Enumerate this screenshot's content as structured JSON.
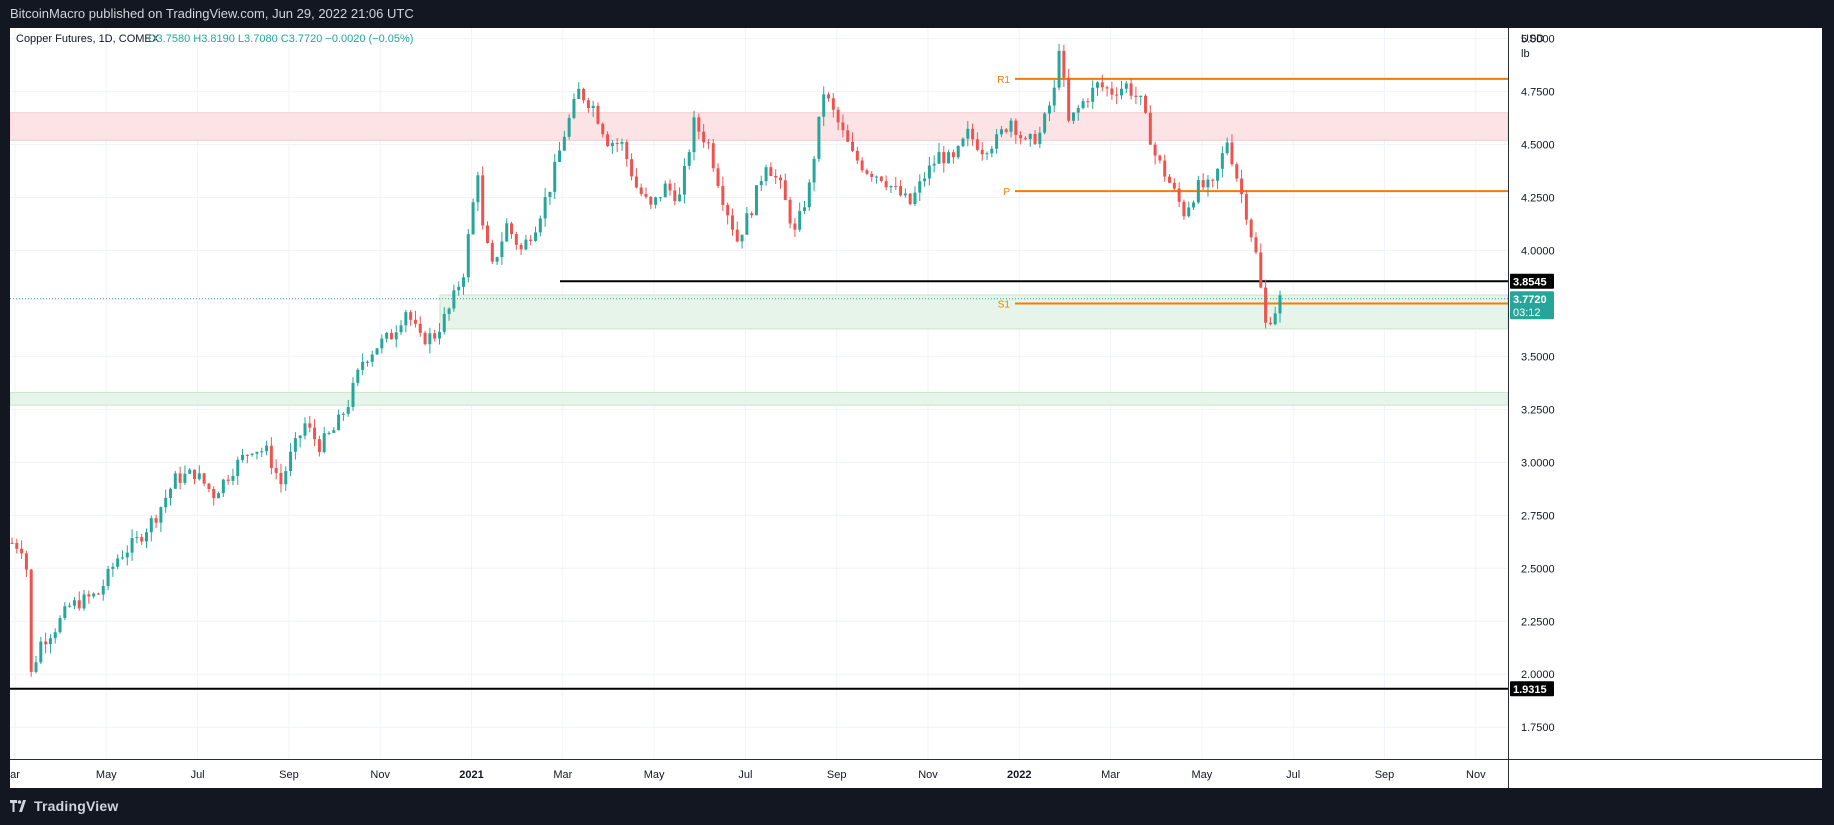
{
  "header": {
    "published": "BitcoinMacro published on TradingView.com, Jun 29, 2022 21:06 UTC"
  },
  "footer": {
    "brand": "TradingView"
  },
  "colors": {
    "up": "#26a69a",
    "down": "#ef5350",
    "level": "#f57c00",
    "line": "#000000"
  },
  "chart_data": {
    "type": "candlestick",
    "instrument": "Copper Futures",
    "timeframe": "1D",
    "exchange": "COMEX",
    "ohlc": {
      "o": "O3.7580",
      "h": "H3.8190",
      "l": "L3.7080",
      "c": "C3.7720",
      "chg": "−0.0020 (−0.05%)"
    },
    "currency_label": "USD",
    "unit_label": "lb",
    "y_range": [
      1.6,
      5.05
    ],
    "y_ticks": [
      "5.0000",
      "4.7500",
      "4.5000",
      "4.2500",
      "4.0000",
      "3.5000",
      "3.2500",
      "3.0000",
      "2.7500",
      "2.5000",
      "2.2500",
      "2.0000",
      "1.7500"
    ],
    "x_labels": [
      "ar",
      "May",
      "Jul",
      "Sep",
      "Nov",
      "2021",
      "Mar",
      "May",
      "Jul",
      "Sep",
      "Nov",
      "2022",
      "Mar",
      "May",
      "Jul",
      "Sep",
      "Nov"
    ],
    "price_markers": [
      {
        "label": "3.8545",
        "value": 3.8545
      },
      {
        "label": "3.7720",
        "value": 3.772,
        "sub": "03:12"
      },
      {
        "label": "1.9315",
        "value": 1.9315
      }
    ],
    "pivot_levels": [
      {
        "label": "R1",
        "value": 4.81
      },
      {
        "label": "P",
        "value": 4.28
      },
      {
        "label": "S1",
        "value": 3.75
      }
    ],
    "zones": [
      {
        "from": 4.52,
        "to": 4.65,
        "color": "#fce4e6"
      },
      {
        "from": 3.63,
        "to": 3.79,
        "color": "#e6f4ea"
      },
      {
        "from": 3.27,
        "to": 3.33,
        "color": "#e6f4ea"
      }
    ],
    "horizontal_lines": [
      {
        "value": 3.8545
      },
      {
        "value": 1.9315
      }
    ],
    "last_price": 3.772,
    "path": [
      [
        0,
        2.62
      ],
      [
        2,
        2.6
      ],
      [
        3,
        2.5
      ],
      [
        4,
        2.0
      ],
      [
        6,
        2.15
      ],
      [
        9,
        2.22
      ],
      [
        12,
        2.32
      ],
      [
        18,
        2.38
      ],
      [
        22,
        2.55
      ],
      [
        26,
        2.63
      ],
      [
        30,
        2.75
      ],
      [
        34,
        2.92
      ],
      [
        38,
        2.95
      ],
      [
        42,
        2.85
      ],
      [
        46,
        2.97
      ],
      [
        50,
        3.07
      ],
      [
        53,
        3.05
      ],
      [
        56,
        2.9
      ],
      [
        58,
        3.03
      ],
      [
        61,
        3.18
      ],
      [
        64,
        3.08
      ],
      [
        67,
        3.15
      ],
      [
        70,
        3.28
      ],
      [
        73,
        3.48
      ],
      [
        76,
        3.55
      ],
      [
        79,
        3.6
      ],
      [
        82,
        3.72
      ],
      [
        85,
        3.58
      ],
      [
        88,
        3.6
      ],
      [
        91,
        3.72
      ],
      [
        94,
        3.9
      ],
      [
        96,
        4.22
      ],
      [
        97,
        4.38
      ],
      [
        98,
        4.1
      ],
      [
        100,
        3.92
      ],
      [
        103,
        4.12
      ],
      [
        106,
        4.0
      ],
      [
        109,
        4.12
      ],
      [
        112,
        4.3
      ],
      [
        115,
        4.55
      ],
      [
        118,
        4.75
      ],
      [
        121,
        4.68
      ],
      [
        124,
        4.52
      ],
      [
        127,
        4.5
      ],
      [
        130,
        4.3
      ],
      [
        133,
        4.2
      ],
      [
        136,
        4.3
      ],
      [
        139,
        4.25
      ],
      [
        142,
        4.6
      ],
      [
        145,
        4.5
      ],
      [
        148,
        4.25
      ],
      [
        151,
        4.05
      ],
      [
        154,
        4.2
      ],
      [
        157,
        4.42
      ],
      [
        160,
        4.3
      ],
      [
        163,
        4.08
      ],
      [
        166,
        4.3
      ],
      [
        169,
        4.75
      ],
      [
        172,
        4.6
      ],
      [
        175,
        4.45
      ],
      [
        178,
        4.38
      ],
      [
        181,
        4.35
      ],
      [
        184,
        4.28
      ],
      [
        187,
        4.22
      ],
      [
        190,
        4.35
      ],
      [
        193,
        4.45
      ],
      [
        196,
        4.42
      ],
      [
        199,
        4.55
      ],
      [
        202,
        4.48
      ],
      [
        205,
        4.52
      ],
      [
        208,
        4.62
      ],
      [
        211,
        4.5
      ],
      [
        214,
        4.55
      ],
      [
        217,
        4.75
      ],
      [
        218,
        4.97
      ],
      [
        220,
        4.6
      ],
      [
        223,
        4.7
      ],
      [
        226,
        4.78
      ],
      [
        229,
        4.75
      ],
      [
        232,
        4.78
      ],
      [
        235,
        4.7
      ],
      [
        238,
        4.45
      ],
      [
        241,
        4.32
      ],
      [
        244,
        4.18
      ],
      [
        247,
        4.3
      ],
      [
        250,
        4.3
      ],
      [
        253,
        4.52
      ],
      [
        255,
        4.35
      ],
      [
        257,
        4.18
      ],
      [
        259,
        3.98
      ],
      [
        261,
        3.65
      ],
      [
        263,
        3.72
      ],
      [
        264,
        3.772
      ]
    ]
  }
}
